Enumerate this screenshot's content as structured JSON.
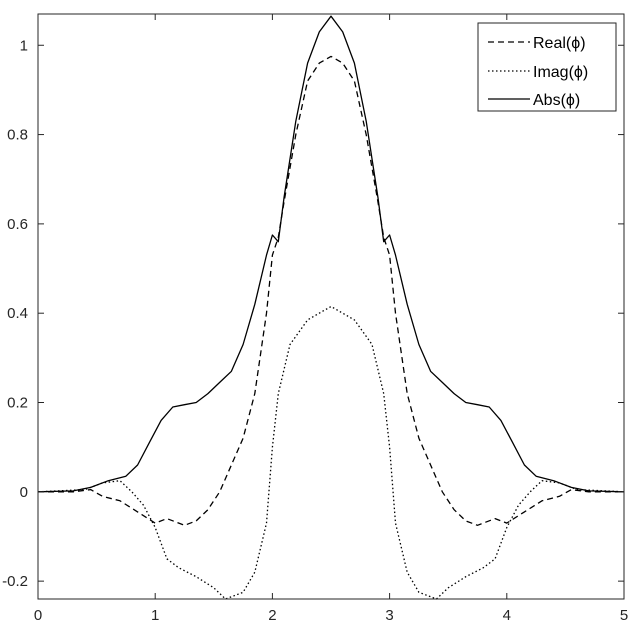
{
  "chart_data": {
    "type": "line",
    "title": "",
    "xlabel": "",
    "ylabel": "",
    "xlim": [
      0,
      5
    ],
    "ylim": [
      -0.24,
      1.07
    ],
    "x_ticks": [
      0,
      1,
      2,
      3,
      4,
      5
    ],
    "x_tick_labels": [
      "0",
      "1",
      "2",
      "3",
      "4",
      "5"
    ],
    "y_ticks": [
      -0.2,
      0,
      0.2,
      0.4,
      0.6,
      0.8,
      1
    ],
    "y_tick_labels": [
      "-0.2",
      "0",
      "0.2",
      "0.4",
      "0.6",
      "0.8",
      "1"
    ],
    "grid": false,
    "legend_position": "top-right",
    "series": [
      {
        "name": "Real(ϕ)",
        "style": "dashed",
        "color": "#000000",
        "points": [
          [
            0,
            0
          ],
          [
            0.3,
            0
          ],
          [
            0.45,
            0.005
          ],
          [
            0.55,
            -0.01
          ],
          [
            0.7,
            -0.02
          ],
          [
            0.85,
            -0.045
          ],
          [
            1.0,
            -0.07
          ],
          [
            1.1,
            -0.06
          ],
          [
            1.25,
            -0.075
          ],
          [
            1.35,
            -0.065
          ],
          [
            1.45,
            -0.04
          ],
          [
            1.55,
            0.0
          ],
          [
            1.65,
            0.06
          ],
          [
            1.75,
            0.12
          ],
          [
            1.85,
            0.22
          ],
          [
            1.95,
            0.4
          ],
          [
            2.0,
            0.53
          ],
          [
            2.05,
            0.57
          ],
          [
            2.1,
            0.65
          ],
          [
            2.2,
            0.8
          ],
          [
            2.3,
            0.92
          ],
          [
            2.4,
            0.96
          ],
          [
            2.5,
            0.975
          ],
          [
            2.6,
            0.96
          ],
          [
            2.7,
            0.92
          ],
          [
            2.8,
            0.8
          ],
          [
            2.9,
            0.65
          ],
          [
            2.95,
            0.57
          ],
          [
            3.0,
            0.53
          ],
          [
            3.05,
            0.4
          ],
          [
            3.15,
            0.22
          ],
          [
            3.25,
            0.12
          ],
          [
            3.35,
            0.06
          ],
          [
            3.45,
            0.0
          ],
          [
            3.55,
            -0.04
          ],
          [
            3.65,
            -0.065
          ],
          [
            3.75,
            -0.075
          ],
          [
            3.9,
            -0.06
          ],
          [
            4.0,
            -0.07
          ],
          [
            4.15,
            -0.045
          ],
          [
            4.3,
            -0.02
          ],
          [
            4.45,
            -0.01
          ],
          [
            4.55,
            0.005
          ],
          [
            4.7,
            0
          ],
          [
            5.0,
            0
          ]
        ]
      },
      {
        "name": "Imag(ϕ)",
        "style": "dotted",
        "color": "#000000",
        "points": [
          [
            0,
            0
          ],
          [
            0.4,
            0.005
          ],
          [
            0.55,
            0.02
          ],
          [
            0.7,
            0.025
          ],
          [
            0.8,
            0.0
          ],
          [
            0.9,
            -0.03
          ],
          [
            1.0,
            -0.08
          ],
          [
            1.1,
            -0.15
          ],
          [
            1.2,
            -0.17
          ],
          [
            1.35,
            -0.19
          ],
          [
            1.5,
            -0.215
          ],
          [
            1.6,
            -0.24
          ],
          [
            1.75,
            -0.225
          ],
          [
            1.85,
            -0.18
          ],
          [
            1.95,
            -0.07
          ],
          [
            2.0,
            0.1
          ],
          [
            2.05,
            0.22
          ],
          [
            2.15,
            0.33
          ],
          [
            2.3,
            0.385
          ],
          [
            2.4,
            0.4
          ],
          [
            2.5,
            0.415
          ],
          [
            2.6,
            0.4
          ],
          [
            2.7,
            0.385
          ],
          [
            2.85,
            0.33
          ],
          [
            2.95,
            0.22
          ],
          [
            3.0,
            0.1
          ],
          [
            3.05,
            -0.07
          ],
          [
            3.15,
            -0.18
          ],
          [
            3.25,
            -0.225
          ],
          [
            3.4,
            -0.24
          ],
          [
            3.5,
            -0.215
          ],
          [
            3.65,
            -0.19
          ],
          [
            3.8,
            -0.17
          ],
          [
            3.9,
            -0.15
          ],
          [
            4.0,
            -0.08
          ],
          [
            4.1,
            -0.03
          ],
          [
            4.2,
            0.0
          ],
          [
            4.3,
            0.025
          ],
          [
            4.45,
            0.02
          ],
          [
            4.6,
            0.005
          ],
          [
            5.0,
            0
          ]
        ]
      },
      {
        "name": "Abs(ϕ)",
        "style": "solid",
        "color": "#000000",
        "points": [
          [
            0,
            0
          ],
          [
            0.3,
            0.002
          ],
          [
            0.45,
            0.01
          ],
          [
            0.6,
            0.025
          ],
          [
            0.75,
            0.035
          ],
          [
            0.85,
            0.06
          ],
          [
            0.95,
            0.11
          ],
          [
            1.05,
            0.16
          ],
          [
            1.15,
            0.19
          ],
          [
            1.25,
            0.195
          ],
          [
            1.35,
            0.2
          ],
          [
            1.45,
            0.22
          ],
          [
            1.55,
            0.245
          ],
          [
            1.65,
            0.27
          ],
          [
            1.75,
            0.33
          ],
          [
            1.85,
            0.42
          ],
          [
            1.95,
            0.53
          ],
          [
            2.0,
            0.575
          ],
          [
            2.05,
            0.56
          ],
          [
            2.1,
            0.66
          ],
          [
            2.2,
            0.83
          ],
          [
            2.3,
            0.96
          ],
          [
            2.4,
            1.03
          ],
          [
            2.5,
            1.065
          ],
          [
            2.6,
            1.03
          ],
          [
            2.7,
            0.96
          ],
          [
            2.8,
            0.83
          ],
          [
            2.9,
            0.66
          ],
          [
            2.95,
            0.56
          ],
          [
            3.0,
            0.575
          ],
          [
            3.05,
            0.53
          ],
          [
            3.15,
            0.42
          ],
          [
            3.25,
            0.33
          ],
          [
            3.35,
            0.27
          ],
          [
            3.45,
            0.245
          ],
          [
            3.55,
            0.22
          ],
          [
            3.65,
            0.2
          ],
          [
            3.75,
            0.195
          ],
          [
            3.85,
            0.19
          ],
          [
            3.95,
            0.16
          ],
          [
            4.05,
            0.11
          ],
          [
            4.15,
            0.06
          ],
          [
            4.25,
            0.035
          ],
          [
            4.4,
            0.025
          ],
          [
            4.55,
            0.01
          ],
          [
            4.7,
            0.002
          ],
          [
            5.0,
            0
          ]
        ]
      }
    ]
  }
}
